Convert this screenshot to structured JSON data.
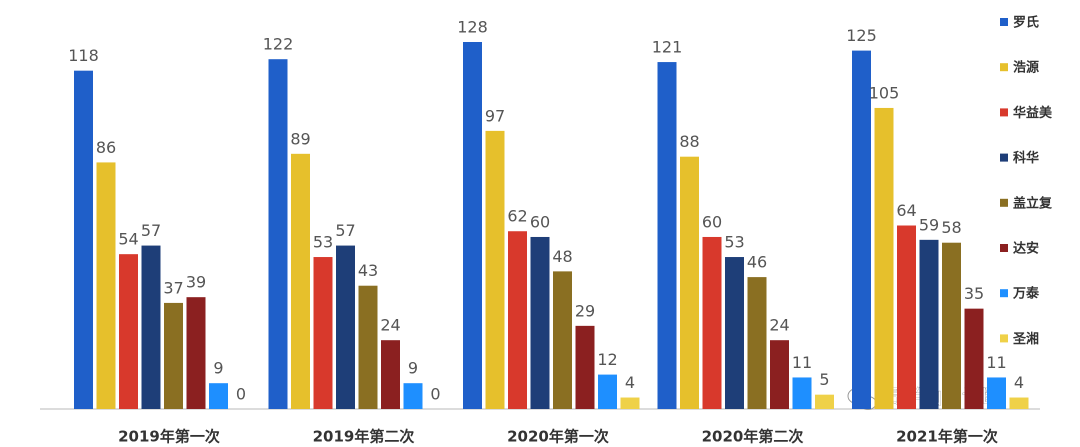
{
  "chart_data": {
    "type": "bar",
    "categories": [
      "2019年第一次",
      "2019年第二次",
      "2020年第一次",
      "2020年第二次",
      "2021年第一次"
    ],
    "series": [
      {
        "name": "罗氏",
        "color": "#1f5fc9",
        "values": [
          118,
          122,
          128,
          121,
          125
        ]
      },
      {
        "name": "浩源",
        "color": "#e6c02c",
        "values": [
          86,
          89,
          97,
          88,
          105
        ]
      },
      {
        "name": "华益美",
        "color": "#d8392c",
        "values": [
          54,
          53,
          62,
          60,
          64
        ]
      },
      {
        "name": "科华",
        "color": "#1e3e78",
        "values": [
          57,
          57,
          60,
          53,
          59
        ]
      },
      {
        "name": "盖立复",
        "color": "#8a6f22",
        "values": [
          37,
          43,
          48,
          46,
          58
        ]
      },
      {
        "name": "达安",
        "color": "#8b2020",
        "values": [
          39,
          24,
          29,
          24,
          35
        ]
      },
      {
        "name": "万泰",
        "color": "#1e8fff",
        "values": [
          9,
          9,
          12,
          11,
          11
        ]
      },
      {
        "name": "圣湘",
        "color": "#efd148",
        "values": [
          0,
          0,
          4,
          5,
          4
        ]
      }
    ],
    "legend": "right",
    "watermark": "贵半仙聊诊断"
  }
}
